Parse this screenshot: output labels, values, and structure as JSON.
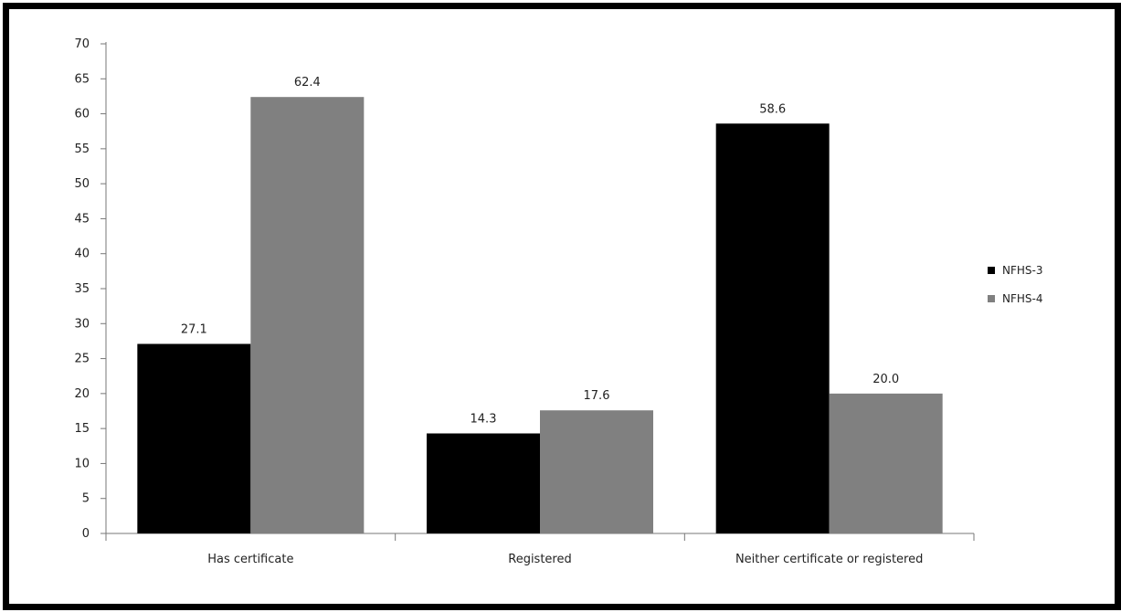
{
  "chart_data": {
    "type": "bar",
    "categories": [
      "Has certificate",
      "Registered",
      "Neither certificate or registered"
    ],
    "series": [
      {
        "name": "NFHS-3",
        "color": "#000000",
        "values": [
          27.1,
          14.3,
          58.6
        ],
        "labels": [
          "27.1",
          "14.3",
          "58.6"
        ]
      },
      {
        "name": "NFHS-4",
        "color": "#808080",
        "values": [
          62.4,
          17.6,
          20.0
        ],
        "labels": [
          "62.4",
          "17.6",
          "20.0"
        ]
      }
    ],
    "ylim": [
      0,
      70
    ],
    "yticks": [
      0,
      5,
      10,
      15,
      20,
      25,
      30,
      35,
      40,
      45,
      50,
      55,
      60,
      65,
      70
    ],
    "legend_position": "right",
    "grid": false
  }
}
